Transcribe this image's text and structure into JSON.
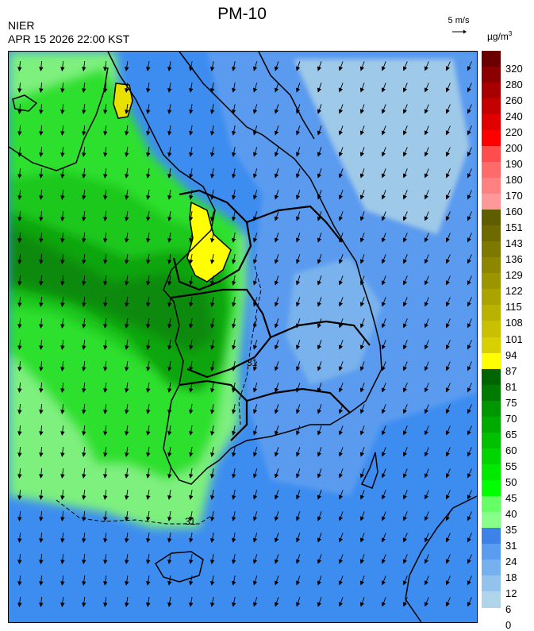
{
  "header": {
    "title": "PM-10",
    "agency": "NIER",
    "timestamp": "APR 15 2026 22:00 KST",
    "wind_scale_label": "5 m/s",
    "unit_base": "µg/m",
    "unit_exp": "3"
  },
  "map": {
    "contour_label": "31",
    "colors": {
      "sea": "#3d8df0",
      "land_low": "#5a9bf0",
      "land_lighter": "#79b2ec",
      "palest": "#9fc9e8",
      "green_light": "#7ef07e",
      "green": "#2ee02e",
      "green_mid": "#1ec81e",
      "green_dark": "#10a510",
      "green_darker": "#078a07",
      "yellow": "#ffff00",
      "yellow_dark": "#e8e000"
    }
  },
  "colorbar": {
    "labels": [
      "320",
      "280",
      "260",
      "240",
      "220",
      "200",
      "190",
      "180",
      "170",
      "160",
      "151",
      "143",
      "136",
      "129",
      "122",
      "115",
      "108",
      "101",
      "94",
      "87",
      "81",
      "75",
      "70",
      "65",
      "60",
      "55",
      "50",
      "45",
      "40",
      "35",
      "31",
      "24",
      "18",
      "12",
      "6",
      "0"
    ],
    "colors": [
      "#6b0000",
      "#8b0000",
      "#a80000",
      "#c40000",
      "#e00000",
      "#ff0000",
      "#ff4d4d",
      "#ff6a6a",
      "#ff8080",
      "#ff9999",
      "#5e5e00",
      "#6e6a00",
      "#7d7800",
      "#8c8600",
      "#9b9500",
      "#aaa300",
      "#bab200",
      "#c8c000",
      "#d8d000",
      "#ffff00",
      "#006400",
      "#007a00",
      "#009600",
      "#00ab00",
      "#00c000",
      "#00d500",
      "#00ea00",
      "#00ff00",
      "#66ff66",
      "#88ff88",
      "#3d82e8",
      "#5a9cf0",
      "#76b0ee",
      "#93c2ec",
      "#b0d4ea"
    ]
  }
}
